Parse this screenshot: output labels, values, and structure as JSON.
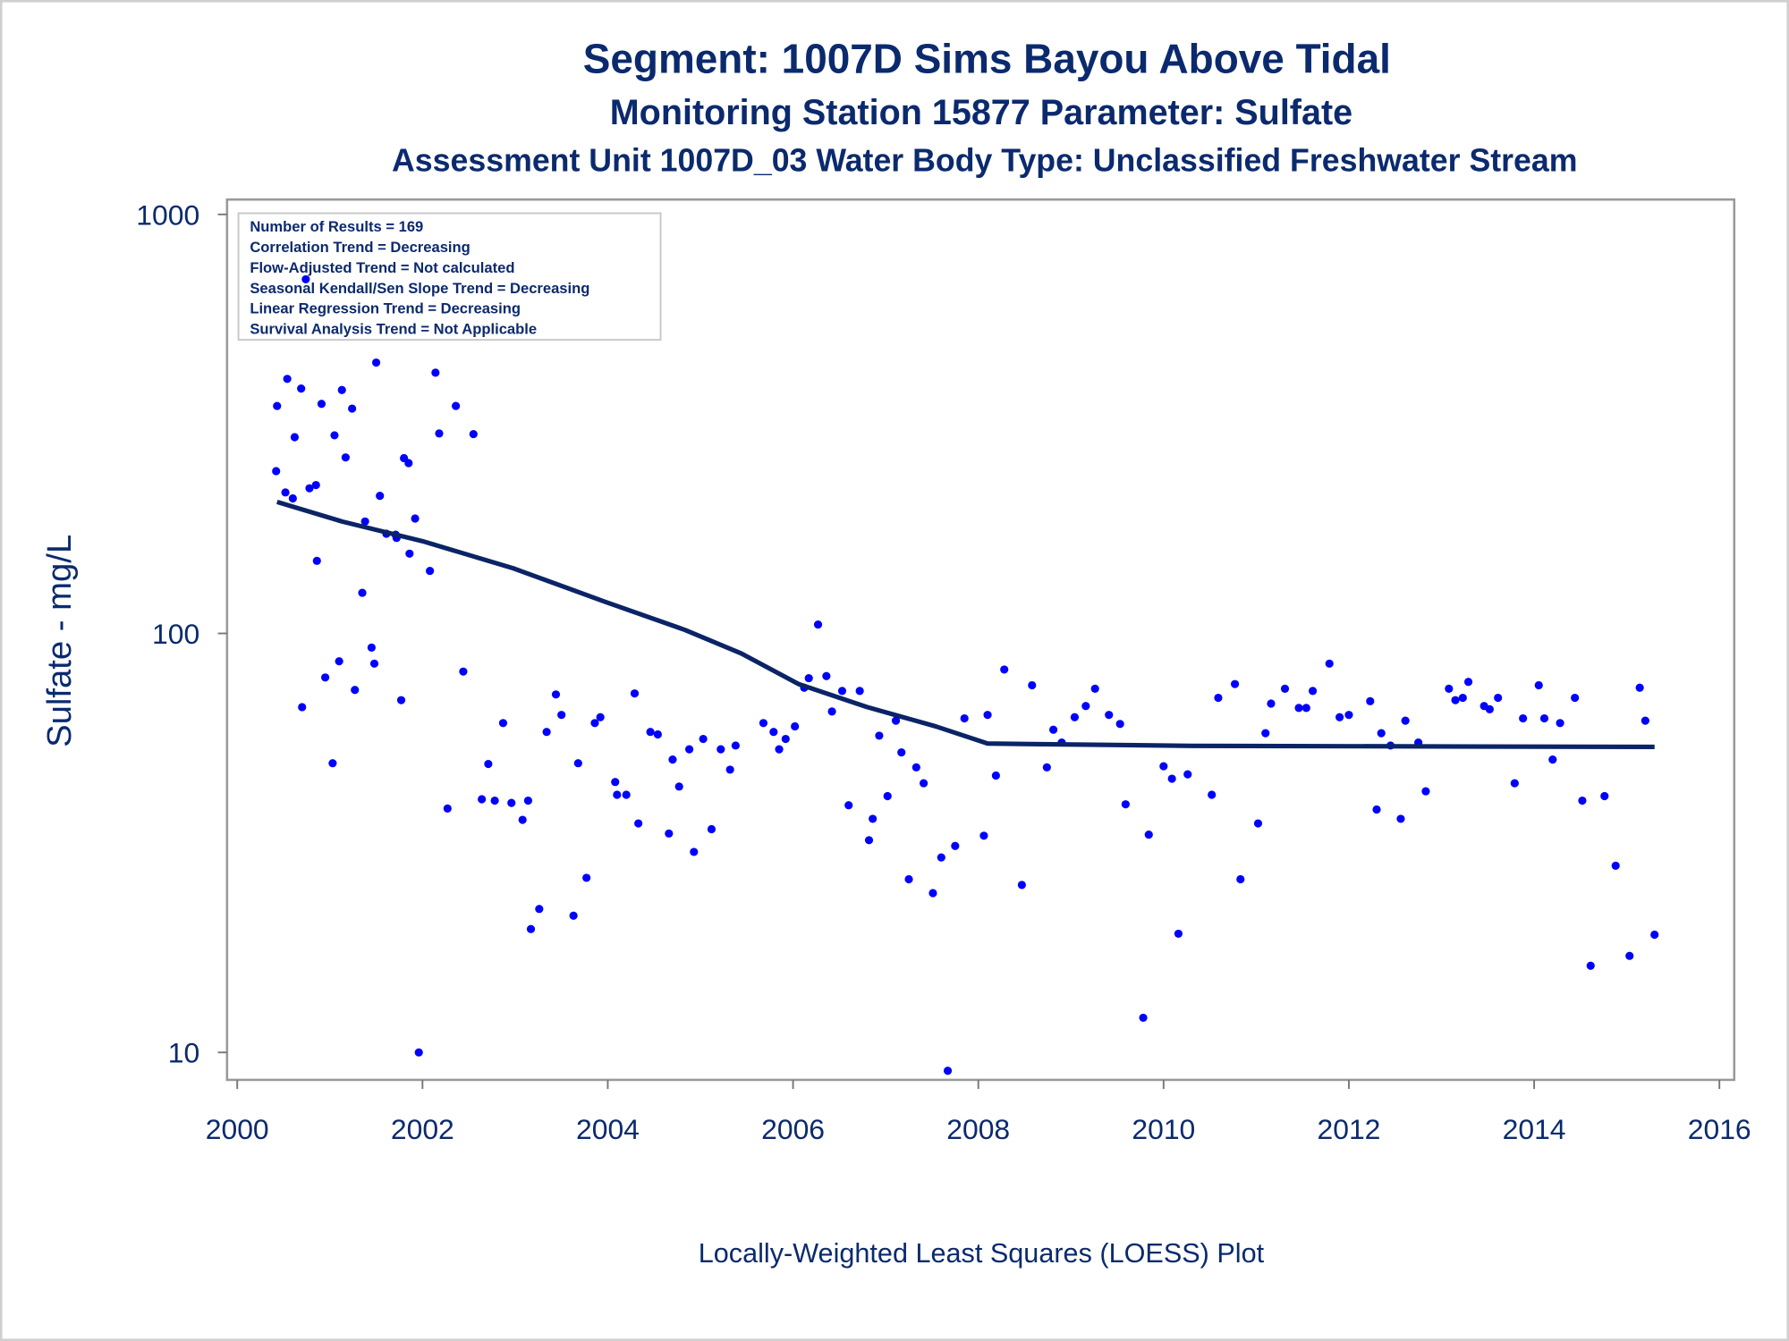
{
  "chart_data": {
    "type": "scatter",
    "title": "Segment: 1007D  Sims Bayou Above Tidal",
    "subtitles": [
      "Monitoring Station 15877 Parameter: Sulfate",
      "Assessment Unit 1007D_03   Water Body Type: Unclassified Freshwater Stream"
    ],
    "ylabel": "Sulfate - mg/L",
    "footnote": "Locally-Weighted Least Squares (LOESS) Plot",
    "annotations": [
      "Number of Results = 169",
      "Correlation Trend = Decreasing",
      "Flow-Adjusted Trend = Not calculated",
      "Seasonal Kendall/Sen Slope Trend = Decreasing",
      "Linear Regression Trend = Decreasing",
      "Survival Analysis Trend = Not Applicable"
    ],
    "xlim": [
      1999.89,
      2016.16
    ],
    "xticks": [
      2000,
      2002,
      2004,
      2006,
      2008,
      2010,
      2012,
      2014,
      2016
    ],
    "ylim": [
      8.6,
      1085
    ],
    "yticks": [
      10,
      100,
      1000
    ],
    "ylog": true,
    "grid": false,
    "series": [
      {
        "type": "scatter",
        "color": "#0000ff",
        "x": [
          2000.42,
          2000.43,
          2000.52,
          2000.54,
          2000.6,
          2000.62,
          2000.69,
          2000.7,
          2000.74,
          2000.78,
          2000.85,
          2000.86,
          2000.91,
          2000.95,
          2001.03,
          2001.05,
          2001.1,
          2001.13,
          2001.17,
          2001.24,
          2001.27,
          2001.35,
          2001.38,
          2001.45,
          2001.48,
          2001.5,
          2001.54,
          2001.61,
          2001.71,
          2001.72,
          2001.77,
          2001.8,
          2001.85,
          2001.86,
          2001.92,
          2001.96,
          2002.08,
          2002.14,
          2002.18,
          2002.27,
          2002.36,
          2002.44,
          2002.55,
          2002.64,
          2002.71,
          2002.78,
          2002.87,
          2002.96,
          2003.08,
          2003.14,
          2003.17,
          2003.26,
          2003.34,
          2003.44,
          2003.5,
          2003.63,
          2003.68,
          2003.77,
          2003.86,
          2003.92,
          2004.08,
          2004.1,
          2004.2,
          2004.29,
          2004.33,
          2004.46,
          2004.54,
          2004.66,
          2004.7,
          2004.77,
          2004.88,
          2004.93,
          2005.03,
          2005.12,
          2005.22,
          2005.32,
          2005.38,
          2005.68,
          2005.79,
          2005.85,
          2005.92,
          2006.02,
          2006.12,
          2006.17,
          2006.27,
          2006.36,
          2006.42,
          2006.53,
          2006.6,
          2006.72,
          2006.82,
          2006.86,
          2006.93,
          2007.02,
          2007.11,
          2007.17,
          2007.25,
          2007.33,
          2007.41,
          2007.51,
          2007.6,
          2007.67,
          2007.75,
          2007.85,
          2008.06,
          2008.1,
          2008.19,
          2008.28,
          2008.47,
          2008.58,
          2008.74,
          2008.81,
          2008.9,
          2009.04,
          2009.16,
          2009.26,
          2009.41,
          2009.53,
          2009.59,
          2009.78,
          2009.84,
          2010.0,
          2010.09,
          2010.16,
          2010.26,
          2010.52,
          2010.59,
          2010.77,
          2010.83,
          2011.02,
          2011.1,
          2011.16,
          2011.31,
          2011.46,
          2011.54,
          2011.61,
          2011.79,
          2011.9,
          2012.0,
          2012.23,
          2012.3,
          2012.35,
          2012.45,
          2012.56,
          2012.61,
          2012.75,
          2012.83,
          2013.08,
          2013.15,
          2013.23,
          2013.29,
          2013.46,
          2013.52,
          2013.61,
          2013.79,
          2013.88,
          2014.05,
          2014.11,
          2014.2,
          2014.28,
          2014.44,
          2014.52,
          2014.61,
          2014.76,
          2014.88,
          2015.03,
          2015.14,
          2015.2,
          2015.3
        ],
        "values": [
          244,
          349,
          217,
          405,
          210,
          294,
          384,
          66.7,
          700,
          222,
          226,
          149,
          353,
          78.5,
          49,
          297,
          85.8,
          381,
          263,
          344,
          73.3,
          125,
          185,
          92.5,
          84.7,
          443,
          213,
          173,
          172,
          169,
          69.3,
          262,
          255,
          155,
          188,
          10,
          141,
          419,
          300,
          38.2,
          349,
          81.1,
          299,
          40.2,
          48.8,
          39.9,
          61.1,
          39.4,
          35.9,
          39.9,
          19.7,
          22.0,
          58.2,
          71.5,
          63.9,
          21.2,
          49,
          26.1,
          61.1,
          63.1,
          44.2,
          41.2,
          41.2,
          71.9,
          35.2,
          58.2,
          57.4,
          33.3,
          50.0,
          43.1,
          52.9,
          30.1,
          56.0,
          34.1,
          52.9,
          47.3,
          54.0,
          61.1,
          58.2,
          52.9,
          56.0,
          60.0,
          74.2,
          78.2,
          105,
          79.1,
          65.1,
          72.9,
          38.9,
          72.9,
          32.1,
          36.1,
          57.0,
          40.9,
          61.9,
          52.0,
          25.9,
          47.9,
          43.9,
          24.0,
          29.2,
          9.04,
          31.1,
          62.7,
          32.9,
          63.9,
          45.8,
          82.0,
          25.1,
          75.2,
          47.9,
          58.9,
          54.9,
          63.1,
          67.1,
          73.8,
          63.9,
          60.8,
          39.1,
          12.1,
          33.1,
          48.2,
          45.0,
          19.2,
          46.1,
          41.2,
          70.2,
          75.7,
          25.9,
          35.2,
          57.8,
          68.0,
          73.8,
          66.4,
          66.4,
          72.9,
          84.7,
          63.1,
          63.9,
          68.9,
          38.0,
          57.8,
          54.0,
          36.1,
          61.9,
          54.9,
          42.0,
          73.8,
          69.3,
          70.2,
          76.6,
          67.1,
          65.9,
          70.2,
          43.9,
          62.7,
          75.2,
          62.7,
          50.0,
          61.1,
          70.2,
          39.9,
          16.1,
          40.9,
          27.9,
          17.0,
          74.2,
          61.9,
          19.1
        ]
      },
      {
        "type": "line",
        "color": "#0b2466",
        "x": [
          2000.43,
          2001.13,
          2002.0,
          2002.98,
          2003.97,
          2004.83,
          2005.44,
          2006.06,
          2006.8,
          2007.54,
          2008.1,
          2010.31,
          2015.3
        ],
        "values": [
          206,
          185,
          166,
          143,
          119,
          102,
          89.6,
          75.7,
          66.7,
          60.0,
          54.6,
          53.9,
          53.6
        ]
      }
    ]
  }
}
